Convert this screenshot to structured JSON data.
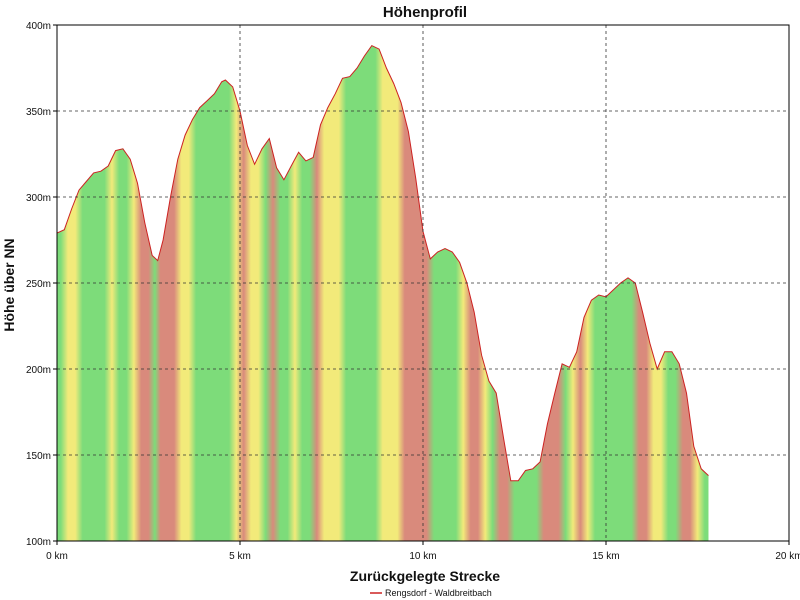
{
  "chart_data": {
    "type": "area",
    "title": "Höhenprofil",
    "xlabel": "Zurückgelegte Strecke",
    "ylabel": "Höhe über NN",
    "xlim": [
      0,
      20
    ],
    "ylim": [
      100,
      400
    ],
    "x_ticks": [
      0,
      5,
      10,
      15,
      20
    ],
    "x_tick_labels": [
      "0 km",
      "5 km",
      "10 km",
      "15 km",
      "20 km"
    ],
    "y_ticks": [
      100,
      150,
      200,
      250,
      300,
      350,
      400
    ],
    "y_tick_labels": [
      "100m",
      "150m",
      "200m",
      "250m",
      "300m",
      "350m",
      "400m"
    ],
    "grid": true,
    "legend": "bottom-center",
    "colors": {
      "line": "#cc2222",
      "flat": "#7ddc7a",
      "moderate": "#f2ea7a",
      "steep": "#d98a7c"
    },
    "series": [
      {
        "name": "Rengsdorf - Waldbreitbach",
        "x": [
          0,
          0.2,
          0.4,
          0.6,
          0.8,
          1.0,
          1.2,
          1.4,
          1.6,
          1.8,
          2.0,
          2.2,
          2.4,
          2.6,
          2.75,
          2.9,
          3.1,
          3.3,
          3.5,
          3.7,
          3.9,
          4.1,
          4.3,
          4.5,
          4.6,
          4.8,
          5.0,
          5.2,
          5.4,
          5.6,
          5.8,
          6.0,
          6.2,
          6.4,
          6.6,
          6.8,
          7.0,
          7.2,
          7.4,
          7.6,
          7.8,
          8.0,
          8.2,
          8.4,
          8.6,
          8.8,
          9.0,
          9.2,
          9.4,
          9.6,
          9.8,
          10.0,
          10.2,
          10.4,
          10.6,
          10.8,
          11.0,
          11.2,
          11.4,
          11.6,
          11.8,
          12.0,
          12.2,
          12.4,
          12.6,
          12.8,
          13.0,
          13.2,
          13.4,
          13.6,
          13.8,
          14.0,
          14.2,
          14.4,
          14.6,
          14.8,
          15.0,
          15.2,
          15.4,
          15.6,
          15.8,
          16.0,
          16.2,
          16.4,
          16.6,
          16.8,
          17.0,
          17.2,
          17.4,
          17.6,
          17.8
        ],
        "y": [
          279,
          281,
          293,
          304,
          309,
          314,
          315,
          318,
          327,
          328,
          322,
          308,
          285,
          266,
          263,
          275,
          300,
          322,
          336,
          345,
          352,
          356,
          360,
          367,
          368,
          364,
          350,
          330,
          319,
          328,
          334,
          317,
          310,
          318,
          326,
          321,
          323,
          342,
          352,
          360,
          369,
          370,
          375,
          382,
          388,
          386,
          375,
          366,
          355,
          338,
          311,
          280,
          264,
          268,
          270,
          268,
          262,
          250,
          233,
          208,
          193,
          186,
          160,
          135,
          135,
          141,
          142,
          146,
          168,
          186,
          203,
          201,
          210,
          230,
          240,
          243,
          242,
          246,
          250,
          253,
          250,
          233,
          215,
          200,
          210,
          210,
          203,
          186,
          155,
          142,
          138
        ]
      }
    ]
  }
}
